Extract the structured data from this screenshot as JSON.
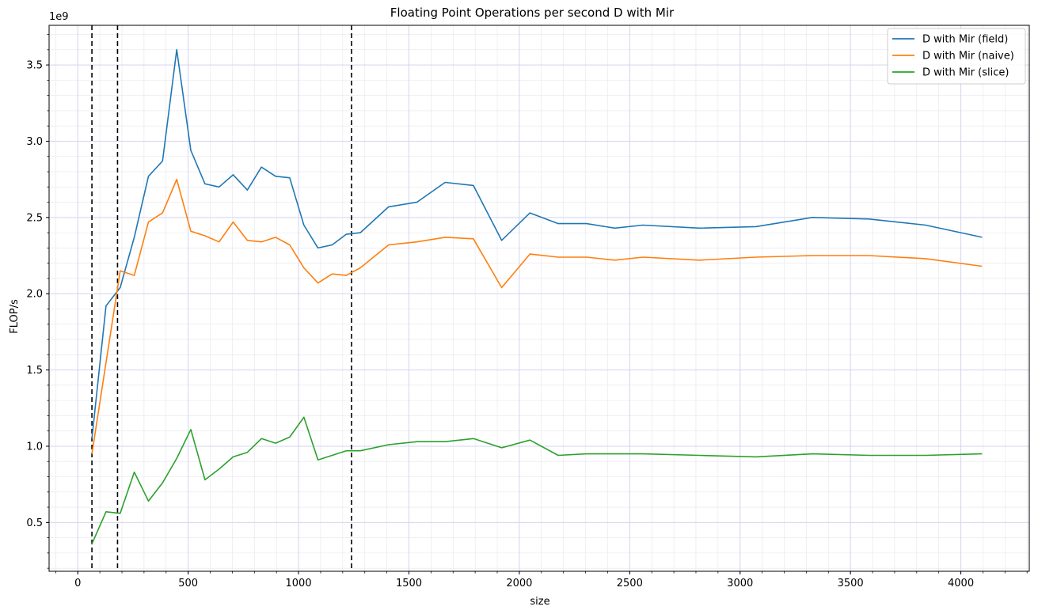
{
  "chart_data": {
    "type": "line",
    "title": "Floating Point Operations per second D with Mir",
    "xlabel": "size",
    "ylabel": "FLOP/s",
    "y_offset_label": "1e9",
    "xlim": [
      -130,
      4310
    ],
    "ylim": [
      0.18,
      3.76
    ],
    "y_scale_note": "values in units of 1e9 FLOP/s",
    "x_ticks": [
      0,
      500,
      1000,
      1500,
      2000,
      2500,
      3000,
      3500,
      4000
    ],
    "y_ticks": [
      0.5,
      1.0,
      1.5,
      2.0,
      2.5,
      3.0,
      3.5
    ],
    "x_tick_labels": [
      "0",
      "500",
      "1000",
      "1500",
      "2000",
      "2500",
      "3000",
      "3500",
      "4000"
    ],
    "y_tick_labels": [
      "0.5",
      "1.0",
      "1.5",
      "2.0",
      "2.5",
      "3.0",
      "3.5"
    ],
    "grid": true,
    "legend_position": "top-right",
    "vertical_dashed_lines": [
      64,
      180,
      1240
    ],
    "series": [
      {
        "name": "D with Mir (field)",
        "color": "#1f77b4",
        "x": [
          64,
          128,
          192,
          256,
          320,
          384,
          448,
          512,
          576,
          640,
          704,
          768,
          832,
          896,
          960,
          1024,
          1088,
          1152,
          1216,
          1280,
          1408,
          1536,
          1664,
          1792,
          1920,
          2048,
          2176,
          2304,
          2432,
          2560,
          2816,
          3072,
          3328,
          3584,
          3840,
          4096
        ],
        "y": [
          1.05,
          1.92,
          2.04,
          2.37,
          2.77,
          2.87,
          3.6,
          2.94,
          2.72,
          2.7,
          2.78,
          2.68,
          2.83,
          2.77,
          2.76,
          2.45,
          2.3,
          2.32,
          2.39,
          2.4,
          2.57,
          2.6,
          2.73,
          2.71,
          2.35,
          2.53,
          2.46,
          2.46,
          2.43,
          2.45,
          2.43,
          2.44,
          2.5,
          2.49,
          2.45,
          2.37
        ]
      },
      {
        "name": "D with Mir (naive)",
        "color": "#ff7f0e",
        "x": [
          64,
          192,
          256,
          320,
          384,
          448,
          512,
          576,
          640,
          704,
          768,
          832,
          896,
          960,
          1024,
          1088,
          1152,
          1216,
          1280,
          1408,
          1536,
          1664,
          1792,
          1920,
          2048,
          2176,
          2304,
          2432,
          2560,
          2816,
          3072,
          3328,
          3584,
          3840,
          4096
        ],
        "y": [
          0.95,
          2.15,
          2.12,
          2.47,
          2.53,
          2.75,
          2.41,
          2.38,
          2.34,
          2.47,
          2.35,
          2.34,
          2.37,
          2.32,
          2.17,
          2.07,
          2.13,
          2.12,
          2.17,
          2.32,
          2.34,
          2.37,
          2.36,
          2.04,
          2.26,
          2.24,
          2.24,
          2.22,
          2.24,
          2.22,
          2.24,
          2.25,
          2.25,
          2.23,
          2.18
        ]
      },
      {
        "name": "D with Mir (slice)",
        "color": "#2ca02c",
        "x": [
          64,
          128,
          192,
          256,
          320,
          384,
          448,
          512,
          576,
          640,
          704,
          768,
          832,
          896,
          960,
          1024,
          1088,
          1152,
          1216,
          1280,
          1408,
          1536,
          1664,
          1792,
          1920,
          2048,
          2176,
          2304,
          2432,
          2560,
          2816,
          3072,
          3328,
          3584,
          3840,
          4096
        ],
        "y": [
          0.36,
          0.57,
          0.56,
          0.83,
          0.64,
          0.76,
          0.92,
          1.11,
          0.78,
          0.85,
          0.93,
          0.96,
          1.05,
          1.02,
          1.06,
          1.19,
          0.91,
          0.94,
          0.97,
          0.97,
          1.01,
          1.03,
          1.03,
          1.05,
          0.99,
          1.04,
          0.94,
          0.95,
          0.95,
          0.95,
          0.94,
          0.93,
          0.95,
          0.94,
          0.94,
          0.95
        ]
      }
    ]
  }
}
